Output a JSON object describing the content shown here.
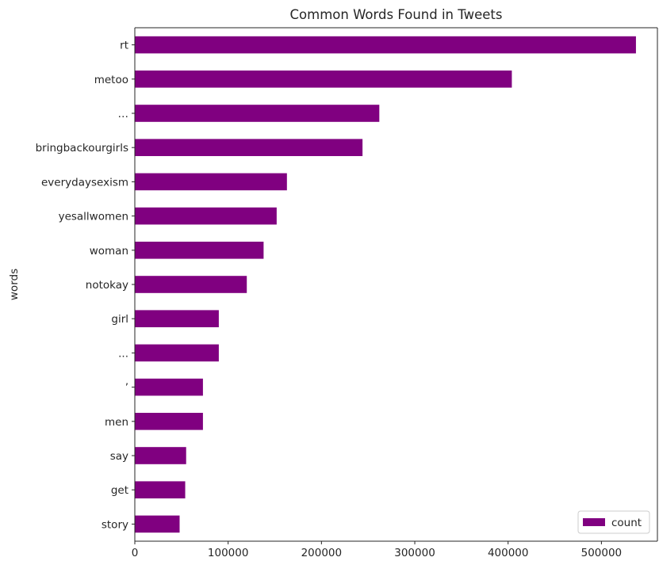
{
  "chart_data": {
    "type": "bar",
    "orientation": "horizontal",
    "title": "Common Words Found in Tweets",
    "xlabel": "",
    "ylabel": "words",
    "categories": [
      "rt",
      "metoo",
      "…",
      "bringbackourgirls",
      "everydaysexism",
      "yesallwomen",
      "woman",
      "notokay",
      "girl",
      "...",
      "’",
      "men",
      "say",
      "get",
      "story"
    ],
    "series": [
      {
        "name": "count",
        "values": [
          537000,
          404000,
          262000,
          244000,
          163000,
          152000,
          138000,
          120000,
          90000,
          90000,
          73000,
          73000,
          55000,
          54000,
          48000
        ]
      }
    ],
    "xlim": [
      0,
      560000
    ],
    "xticks": [
      0,
      100000,
      200000,
      300000,
      400000,
      500000
    ],
    "xtick_labels": [
      "0",
      "100000",
      "200000",
      "300000",
      "400000",
      "500000"
    ],
    "bar_color": "#800080",
    "grid": false,
    "legend_position": "lower-right"
  }
}
